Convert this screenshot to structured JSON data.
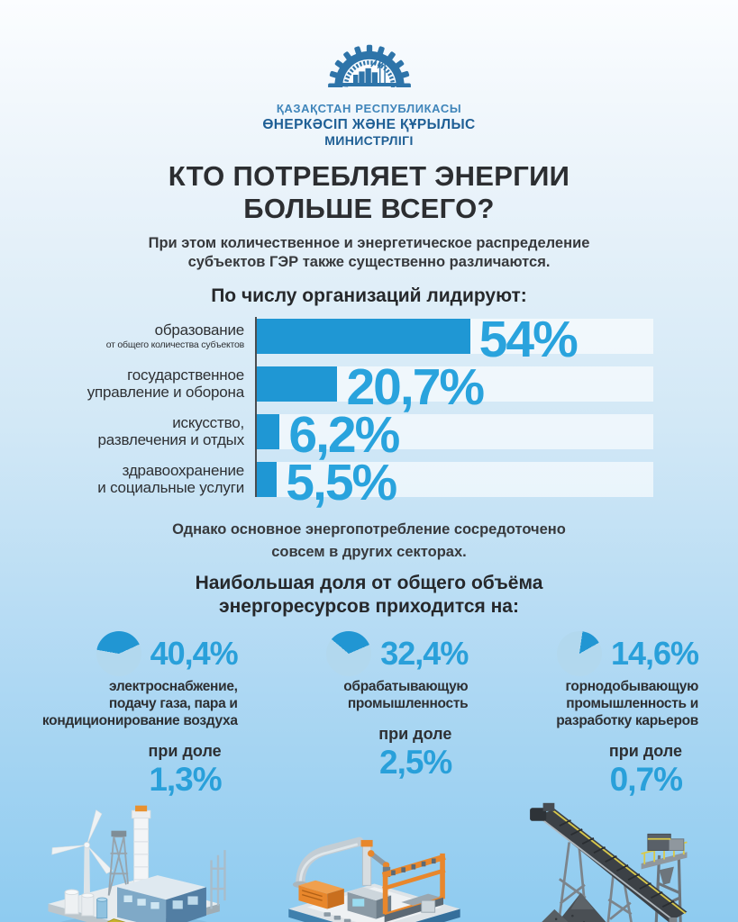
{
  "colors": {
    "accent_blue": "#29a0da",
    "bar_blue": "#1f97d4",
    "pie_dark": "#2196d3",
    "pie_light": "#b2d8ee",
    "logo_blue": "#2e74a9",
    "logo_text_dark": "#1f5f95",
    "text_dark": "#2e3033",
    "bg_top": "#fbfdff",
    "bg_bottom": "#8ecbf0"
  },
  "logo": {
    "line1": "ҚАЗАҚСТАН РЕСПУБЛИКАСЫ",
    "line2": "ӨНЕРКӘСІП ЖӘНЕ ҚҰРЫЛЫС",
    "line3": "МИНИСТРЛІГІ"
  },
  "title": "КТО ПОТРЕБЛЯЕТ ЭНЕРГИИ\nБОЛЬШЕ ВСЕГО?",
  "subtitle": "При этом количественное и энергетическое распределение\nсубъектов ГЭР также существенно различаются.",
  "bar_section": {
    "title": "По числу организаций лидируют:",
    "rows": [
      {
        "label": "образование",
        "note": "от общего количества субъектов",
        "value": 54,
        "value_label": "54%"
      },
      {
        "label": "государственное\nуправление и оборона",
        "value": 20.7,
        "value_label": "20,7%"
      },
      {
        "label": "искусство,\nразвлечения и отдых",
        "value": 6.2,
        "value_label": "6,2%"
      },
      {
        "label": "здравоохранение\nи социальные услуги",
        "value": 5.5,
        "value_label": "5,5%"
      }
    ]
  },
  "mid_text": "Однако основное энергопотребление сосредоточено\nсовсем в других секторах.",
  "pie_section": {
    "title": "Наибольшая доля от общего объёма\nэнергоресурсов приходится на:",
    "items": [
      {
        "value": 40.4,
        "value_label": "40,4%",
        "label": "электроснабжение,\nподачу газа, пара и\nкондиционирование воздуха",
        "share_caption": "при доле",
        "share_label": "1,3%"
      },
      {
        "value": 32.4,
        "value_label": "32,4%",
        "label": "обрабатывающую\nпромышленность",
        "share_caption": "при доле",
        "share_label": "2,5%"
      },
      {
        "value": 14.6,
        "value_label": "14,6%",
        "label": "горнодобывающую\nпромышленность и\nразработку карьеров",
        "share_caption": "при доле",
        "share_label": "0,7%"
      }
    ]
  },
  "chart_data": [
    {
      "type": "bar",
      "orientation": "horizontal",
      "title": "По числу организаций лидируют:",
      "categories": [
        "образование (от общего количества субъектов)",
        "государственное управление и оборона",
        "искусство, развлечения и отдых",
        "здравоохранение и социальные услуги"
      ],
      "values": [
        54,
        20.7,
        6.2,
        5.5
      ],
      "value_labels": [
        "54%",
        "20,7%",
        "6,2%",
        "5,5%"
      ],
      "unit": "%",
      "xlim": [
        0,
        100
      ],
      "grid": false,
      "legend": false
    },
    {
      "type": "pie",
      "title": "Наибольшая доля от общего объёма энергоресурсов приходится на:",
      "slices": [
        {
          "label": "электроснабжение, подачу газа, пара и кондиционирование воздуха",
          "value": 40.4,
          "share_of_subjects_pct": 1.3
        },
        {
          "label": "обрабатывающую промышленность",
          "value": 32.4,
          "share_of_subjects_pct": 2.5
        },
        {
          "label": "горнодобывающую промышленность и разработку карьеров",
          "value": 14.6,
          "share_of_subjects_pct": 0.7
        }
      ],
      "note": "каждая доля показана отдельной мини-диаграммой"
    }
  ]
}
